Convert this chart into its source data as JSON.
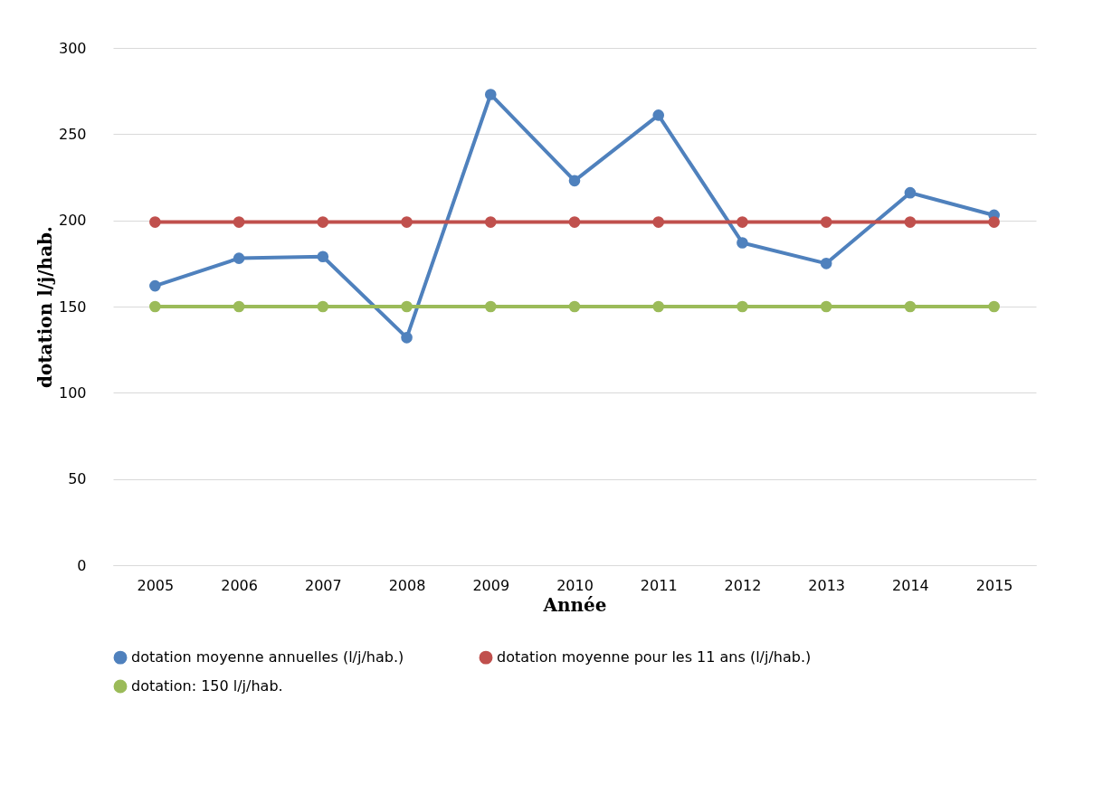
{
  "chart_data": {
    "type": "line",
    "xlabel": "Année",
    "ylabel": "dotation l/j/hab.",
    "categories": [
      "2005",
      "2006",
      "2007",
      "2008",
      "2009",
      "2010",
      "2011",
      "2012",
      "2013",
      "2014",
      "2015"
    ],
    "series": [
      {
        "name": "dotation moyenne annuelles (l/j/hab.)",
        "color": "#4f81bd",
        "values": [
          162,
          178,
          179,
          132,
          273,
          223,
          261,
          187,
          175,
          216,
          203
        ]
      },
      {
        "name": "dotation moyenne pour les 11 ans (l/j/hab.)",
        "color": "#c0504d",
        "values": [
          199,
          199,
          199,
          199,
          199,
          199,
          199,
          199,
          199,
          199,
          199
        ]
      },
      {
        "name": "dotation: 150 l/j/hab.",
        "color": "#9bbb59",
        "values": [
          150,
          150,
          150,
          150,
          150,
          150,
          150,
          150,
          150,
          150,
          150
        ]
      }
    ],
    "ylim": [
      0,
      300
    ],
    "yticks": [
      0,
      50,
      100,
      150,
      200,
      250,
      300
    ],
    "grid": "y",
    "legend": "bottom",
    "marker": "circle",
    "line_style": "solid"
  }
}
